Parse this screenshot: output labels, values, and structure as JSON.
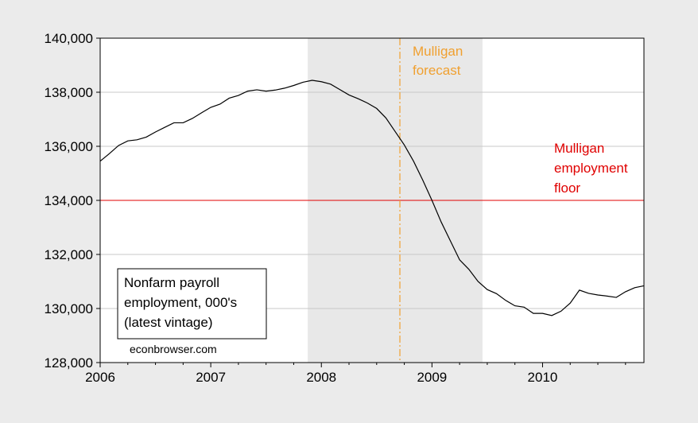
{
  "chart_data": {
    "type": "line",
    "title": "",
    "xlabel": "",
    "ylabel": "",
    "xlim": [
      2006.0,
      2010.9167
    ],
    "ylim": [
      128000,
      140000
    ],
    "y_ticks": [
      128000,
      130000,
      132000,
      134000,
      136000,
      138000,
      140000
    ],
    "y_tick_labels": [
      "128,000",
      "130,000",
      "132,000",
      "134,000",
      "136,000",
      "138,000",
      "140,000"
    ],
    "x_ticks": [
      2006,
      2007,
      2008,
      2009,
      2010
    ],
    "x_tick_labels": [
      "2006",
      "2007",
      "2008",
      "2009",
      "2010"
    ],
    "grid": "horizontal",
    "recession_shading": {
      "start": "2007-12",
      "end": "2009-06",
      "color": "#e8e8e8"
    },
    "series": [
      {
        "name": "Nonfarm payroll employment, 000's (latest vintage)",
        "color": "#000000",
        "x": [
          "2006-01",
          "2006-02",
          "2006-03",
          "2006-04",
          "2006-05",
          "2006-06",
          "2006-07",
          "2006-08",
          "2006-09",
          "2006-10",
          "2006-11",
          "2006-12",
          "2007-01",
          "2007-02",
          "2007-03",
          "2007-04",
          "2007-05",
          "2007-06",
          "2007-07",
          "2007-08",
          "2007-09",
          "2007-10",
          "2007-11",
          "2007-12",
          "2008-01",
          "2008-02",
          "2008-03",
          "2008-04",
          "2008-05",
          "2008-06",
          "2008-07",
          "2008-08",
          "2008-09",
          "2008-10",
          "2008-11",
          "2008-12",
          "2009-01",
          "2009-02",
          "2009-03",
          "2009-04",
          "2009-05",
          "2009-06",
          "2009-07",
          "2009-08",
          "2009-09",
          "2009-10",
          "2009-11",
          "2009-12",
          "2010-01",
          "2010-02",
          "2010-03",
          "2010-04",
          "2010-05",
          "2010-06",
          "2010-07",
          "2010-08",
          "2010-09",
          "2010-10",
          "2010-11",
          "2010-12"
        ],
        "values": [
          135450,
          135730,
          136030,
          136200,
          136240,
          136340,
          136530,
          136700,
          136870,
          136870,
          137030,
          137240,
          137440,
          137560,
          137780,
          137880,
          138040,
          138090,
          138040,
          138080,
          138150,
          138250,
          138370,
          138440,
          138390,
          138300,
          138100,
          137900,
          137760,
          137600,
          137400,
          137050,
          136550,
          136050,
          135450,
          134750,
          134000,
          133200,
          132500,
          131800,
          131450,
          131000,
          130700,
          130550,
          130300,
          130100,
          130050,
          129820,
          129820,
          129740,
          129900,
          130200,
          130680,
          130560,
          130500,
          130460,
          130410,
          130620,
          130770,
          130840
        ]
      }
    ],
    "reference_lines": [
      {
        "orientation": "horizontal",
        "value": 134000,
        "color": "#e00000",
        "label": "Mulligan employment floor"
      },
      {
        "orientation": "vertical",
        "value": "2008-10",
        "color": "#f0a030",
        "style": "dash-dot",
        "label": "Mulligan forecast"
      }
    ],
    "annotations": {
      "forecast_label": [
        "Mulligan",
        "forecast"
      ],
      "floor_label": [
        "Mulligan",
        "employment",
        "floor"
      ],
      "legend_lines": [
        "Nonfarm payroll",
        "employment, 000's",
        "(latest vintage)"
      ],
      "credit": "econbrowser.com"
    },
    "colors": {
      "forecast": "#f0a030",
      "floor": "#e00000",
      "shading": "#e8e8e8",
      "grid": "#c8c8c8"
    }
  }
}
